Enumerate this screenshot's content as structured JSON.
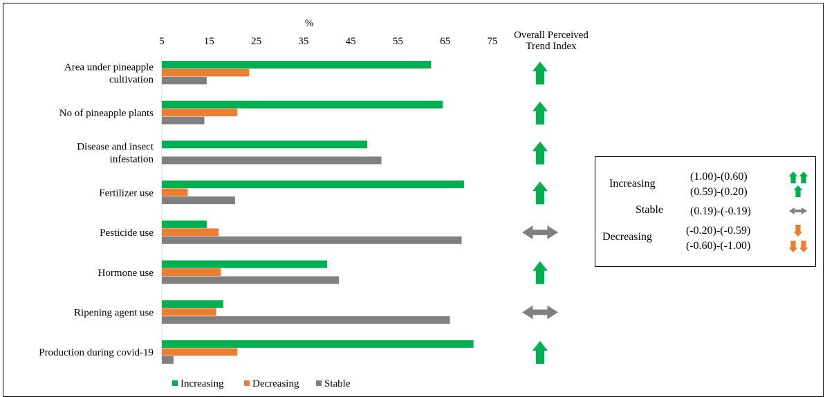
{
  "chart_data": {
    "type": "bar",
    "orientation": "horizontal",
    "xlabel": "%",
    "xlim": [
      5,
      75
    ],
    "xticks": [
      5,
      15,
      25,
      35,
      45,
      55,
      65,
      75
    ],
    "categories": [
      "Area under pineapple cultivation",
      "No of pineapple plants",
      "Disease and insect infestation",
      "Fertilizer use",
      "Pesticide use",
      "Hormone use",
      "Ripening agent use",
      "Production during covid-19"
    ],
    "category_lines": [
      [
        "Area under pineapple",
        "cultivation"
      ],
      [
        "No of pineapple plants"
      ],
      [
        "Disease and insect",
        "infestation"
      ],
      [
        "Fertilizer use"
      ],
      [
        "Pesticide use"
      ],
      [
        "Hormone use"
      ],
      [
        "Ripening agent use"
      ],
      [
        "Production during covid-19"
      ]
    ],
    "series": [
      {
        "name": "Increasing",
        "color": "#00B050",
        "values": [
          62,
          64.5,
          48.5,
          69,
          14.5,
          40,
          18,
          71
        ]
      },
      {
        "name": "Decreasing",
        "color": "#ED7D31",
        "values": [
          23.5,
          21,
          0,
          10.5,
          17,
          17.5,
          16.5,
          21
        ]
      },
      {
        "name": "Stable",
        "color": "#808080",
        "values": [
          14.5,
          14,
          51.5,
          20.5,
          68.5,
          42.5,
          66,
          7.5
        ]
      }
    ],
    "trend_column_title": [
      "Overall Perceived",
      "Trend Index"
    ],
    "trend_index": [
      "up",
      "up",
      "up",
      "up",
      "both",
      "up",
      "both",
      "up"
    ],
    "legend_position": "bottom",
    "grid": false
  },
  "trend_legend": {
    "rows": [
      {
        "category": "Increasing",
        "range": "(1.00)-(0.60)",
        "symbol": "double-up-arrow-icon",
        "color": "#00B050"
      },
      {
        "category": "",
        "range": "(0.59)-(0.20)",
        "symbol": "up-arrow-icon",
        "color": "#00B050"
      },
      {
        "category": "Stable",
        "range": "(0.19)-(-0.19)",
        "symbol": "double-headed-arrow-icon",
        "color": "#808080"
      },
      {
        "category": "Decreasing",
        "range": "(-0.20)-(-0.59)",
        "symbol": "down-arrow-icon",
        "color": "#ED7D31"
      },
      {
        "category": "",
        "range": "(-0.60)-(-1.00)",
        "symbol": "double-down-arrow-icon",
        "color": "#ED7D31"
      }
    ]
  }
}
